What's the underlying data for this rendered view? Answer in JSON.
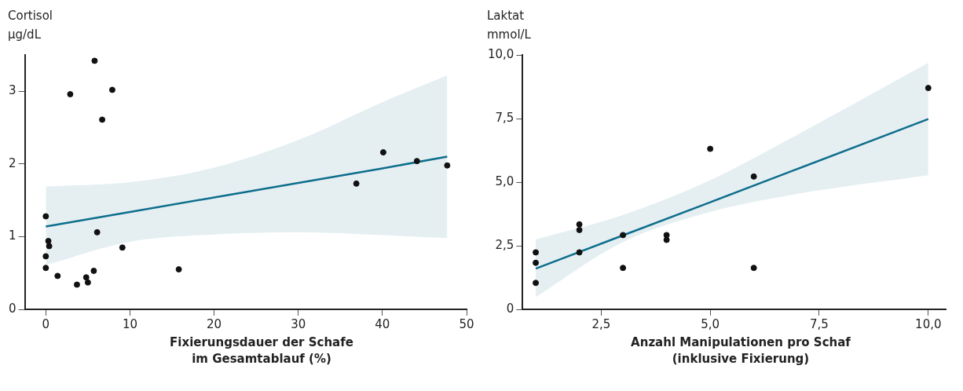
{
  "chart_data": [
    {
      "type": "scatter",
      "ylabel": "Cortisol\nµg/dL",
      "xlabel": "Fixierungsdauer der Schafe\nim Gesamtablauf (%)",
      "xlim": [
        -2.5,
        50
      ],
      "xticks": [
        0,
        10,
        20,
        30,
        40,
        50
      ],
      "ylim": [
        0,
        3.5
      ],
      "yticks": [
        0,
        1,
        2,
        3
      ],
      "grid": false,
      "legend": false,
      "series": [
        {
          "marker": "circle",
          "color": "#111111",
          "x": [
            0,
            0.3,
            0.4,
            0,
            0,
            1.4,
            3.7,
            4.8,
            5.0,
            5.7,
            6.1,
            2.9,
            5.8,
            6.7,
            7.9,
            9.1,
            15.8,
            36.9,
            40.1,
            44.1,
            47.7
          ],
          "values": [
            1.28,
            0.94,
            0.87,
            0.73,
            0.57,
            0.46,
            0.34,
            0.44,
            0.37,
            0.53,
            1.06,
            2.96,
            3.42,
            2.61,
            3.02,
            0.85,
            0.55,
            1.73,
            2.16,
            2.04,
            1.98
          ]
        },
        {
          "type": "line",
          "marker": "none",
          "color": "#0e6e8c",
          "x": [
            0,
            10,
            20,
            30,
            40,
            47.7
          ],
          "values": [
            1.14,
            1.34,
            1.54,
            1.74,
            1.94,
            2.1
          ],
          "lower": [
            0.61,
            0.93,
            1.03,
            1.06,
            1.02,
            0.98
          ],
          "upper": [
            1.69,
            1.75,
            1.95,
            2.33,
            2.85,
            3.22
          ]
        }
      ]
    },
    {
      "type": "scatter",
      "ylabel": "Laktat\nmmol/L",
      "xlabel": "Anzahl Manipulationen pro Schaf\n(inklusive Fixierung)",
      "xlim": [
        0.7,
        10.4
      ],
      "xticks": [
        {
          "value": 2.5,
          "label": "2,5"
        },
        {
          "value": 5,
          "label": "5,0"
        },
        {
          "value": 7.5,
          "label": "7,5"
        },
        {
          "value": 10,
          "label": "10,0"
        }
      ],
      "ylim": [
        0,
        10
      ],
      "yticks": [
        0,
        {
          "value": 2.5,
          "label": "2,5"
        },
        {
          "value": 5,
          "label": "5,0"
        },
        {
          "value": 7.5,
          "label": "7,5"
        },
        {
          "value": 10,
          "label": "10,0"
        }
      ],
      "grid": false,
      "legend": false,
      "series": [
        {
          "marker": "circle",
          "color": "#111111",
          "x": [
            1,
            1,
            1,
            2,
            2,
            2,
            3,
            3,
            4,
            4,
            5,
            6,
            6,
            10
          ],
          "values": [
            2.24,
            1.83,
            1.04,
            3.34,
            3.12,
            2.24,
            2.92,
            1.63,
            2.92,
            2.73,
            6.31,
            5.22,
            1.63,
            8.7
          ]
        },
        {
          "type": "line",
          "marker": "none",
          "color": "#0e6e8c",
          "x": [
            1,
            3,
            5,
            7,
            10
          ],
          "values": [
            1.6,
            2.91,
            4.21,
            5.52,
            7.48
          ],
          "lower": [
            0.48,
            2.65,
            3.83,
            4.54,
            5.27
          ],
          "upper": [
            2.75,
            3.71,
            5.08,
            6.87,
            9.69
          ]
        }
      ]
    }
  ]
}
